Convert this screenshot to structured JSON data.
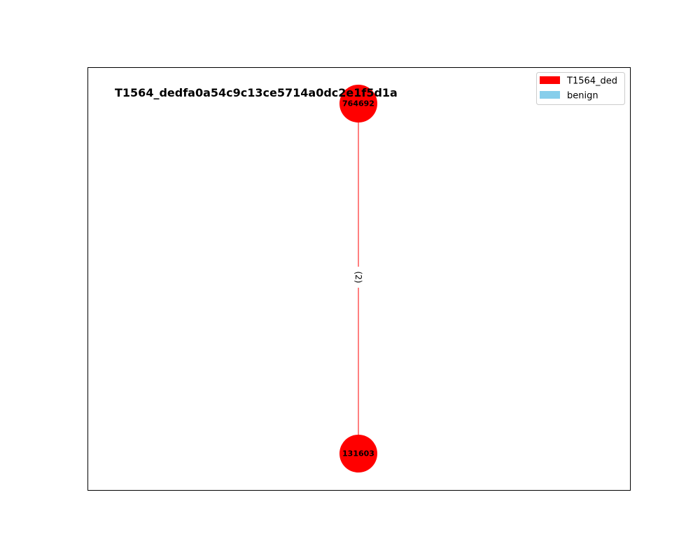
{
  "graph": {
    "title": "T1564_dedfa0a54c9c13ce5714a0dc2e1f5d1a",
    "nodes": [
      {
        "id": "764692",
        "category": "T1564_ded",
        "color": "#ff0000"
      },
      {
        "id": "131603",
        "category": "T1564_ded",
        "color": "#ff0000"
      }
    ],
    "edges": [
      {
        "source": "764692",
        "target": "131603",
        "label": "(2)",
        "color": "#ff0000"
      }
    ]
  },
  "legend": {
    "items": [
      {
        "label": "T1564_ded",
        "color": "#ff0000"
      },
      {
        "label": "benign",
        "color": "#87ceeb"
      }
    ]
  }
}
